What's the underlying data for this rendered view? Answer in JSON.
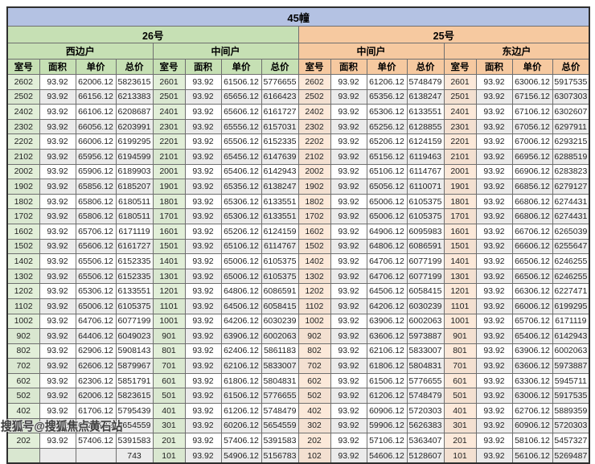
{
  "page": {
    "title": "45幢",
    "watermark": "搜狐号@搜狐焦点黄石站"
  },
  "table": {
    "columns": [
      "室号",
      "面积",
      "单价",
      "总价"
    ],
    "buildings": [
      {
        "label": "26号",
        "theme": "green"
      },
      {
        "label": "25号",
        "theme": "orange"
      }
    ],
    "groups": [
      {
        "building": "26号",
        "unit": "西边户",
        "theme": "green",
        "rows": [
          [
            "2602",
            "93.92",
            "62006.12",
            "5823615"
          ],
          [
            "2502",
            "93.92",
            "66156.12",
            "6213383"
          ],
          [
            "2402",
            "93.92",
            "66106.12",
            "6208687"
          ],
          [
            "2302",
            "93.92",
            "66056.12",
            "6203991"
          ],
          [
            "2202",
            "93.92",
            "66006.12",
            "6199295"
          ],
          [
            "2102",
            "93.92",
            "65956.12",
            "6194599"
          ],
          [
            "2002",
            "93.92",
            "65906.12",
            "6189903"
          ],
          [
            "1902",
            "93.92",
            "65856.12",
            "6185207"
          ],
          [
            "1802",
            "93.92",
            "65806.12",
            "6180511"
          ],
          [
            "1702",
            "93.92",
            "65806.12",
            "6180511"
          ],
          [
            "1602",
            "93.92",
            "65706.12",
            "6171119"
          ],
          [
            "1502",
            "93.92",
            "65606.12",
            "6161727"
          ],
          [
            "1402",
            "93.92",
            "65506.12",
            "6152335"
          ],
          [
            "1302",
            "93.92",
            "65506.12",
            "6152335"
          ],
          [
            "1202",
            "93.92",
            "65306.12",
            "6133551"
          ],
          [
            "1102",
            "93.92",
            "65006.12",
            "6105375"
          ],
          [
            "1002",
            "93.92",
            "64706.12",
            "6077199"
          ],
          [
            "902",
            "93.92",
            "64406.12",
            "6049023"
          ],
          [
            "802",
            "93.92",
            "62906.12",
            "5908143"
          ],
          [
            "702",
            "93.92",
            "62606.12",
            "5879967"
          ],
          [
            "602",
            "93.92",
            "62306.12",
            "5851791"
          ],
          [
            "502",
            "93.92",
            "62006.12",
            "5823615"
          ],
          [
            "402",
            "93.92",
            "61706.12",
            "5795439"
          ],
          [
            "302",
            "93.92",
            "60206.12",
            "5654559"
          ],
          [
            "202",
            "93.92",
            "57406.12",
            "5391583"
          ],
          [
            "",
            "",
            "",
            "743"
          ]
        ]
      },
      {
        "building": "26号",
        "unit": "中间户",
        "theme": "green",
        "rows": [
          [
            "2601",
            "93.92",
            "61506.12",
            "5776655"
          ],
          [
            "2501",
            "93.92",
            "65656.12",
            "6166423"
          ],
          [
            "2401",
            "93.92",
            "65606.12",
            "6161727"
          ],
          [
            "2301",
            "93.92",
            "65556.12",
            "6157031"
          ],
          [
            "2201",
            "93.92",
            "65506.12",
            "6152335"
          ],
          [
            "2101",
            "93.92",
            "65456.12",
            "6147639"
          ],
          [
            "2001",
            "93.92",
            "65406.12",
            "6142943"
          ],
          [
            "1901",
            "93.92",
            "65356.12",
            "6138247"
          ],
          [
            "1801",
            "93.92",
            "65306.12",
            "6133551"
          ],
          [
            "1701",
            "93.92",
            "65306.12",
            "6133551"
          ],
          [
            "1601",
            "93.92",
            "65206.12",
            "6124159"
          ],
          [
            "1501",
            "93.92",
            "65106.12",
            "6114767"
          ],
          [
            "1401",
            "93.92",
            "65006.12",
            "6105375"
          ],
          [
            "1301",
            "93.92",
            "65006.12",
            "6105375"
          ],
          [
            "1201",
            "93.92",
            "64806.12",
            "6086591"
          ],
          [
            "1101",
            "93.92",
            "64506.12",
            "6058415"
          ],
          [
            "1001",
            "93.92",
            "64206.12",
            "6030239"
          ],
          [
            "901",
            "93.92",
            "63906.12",
            "6002063"
          ],
          [
            "801",
            "93.92",
            "62406.12",
            "5861183"
          ],
          [
            "701",
            "93.92",
            "62106.12",
            "5833007"
          ],
          [
            "601",
            "93.92",
            "61806.12",
            "5804831"
          ],
          [
            "501",
            "93.92",
            "61506.12",
            "5776655"
          ],
          [
            "401",
            "93.92",
            "61206.12",
            "5748479"
          ],
          [
            "301",
            "93.92",
            "60206.12",
            "5654559"
          ],
          [
            "201",
            "93.92",
            "57406.12",
            "5391583"
          ],
          [
            "101",
            "93.92",
            "54906.12",
            "5156783"
          ]
        ]
      },
      {
        "building": "25号",
        "unit": "中间户",
        "theme": "orange",
        "rows": [
          [
            "2602",
            "93.92",
            "61206.12",
            "5748479"
          ],
          [
            "2502",
            "93.92",
            "65356.12",
            "6138247"
          ],
          [
            "2402",
            "93.92",
            "65306.12",
            "6133551"
          ],
          [
            "2302",
            "93.92",
            "65256.12",
            "6128855"
          ],
          [
            "2202",
            "93.92",
            "65206.12",
            "6124159"
          ],
          [
            "2102",
            "93.92",
            "65156.12",
            "6119463"
          ],
          [
            "2002",
            "93.92",
            "65106.12",
            "6114767"
          ],
          [
            "1902",
            "93.92",
            "65056.12",
            "6110071"
          ],
          [
            "1802",
            "93.92",
            "65006.12",
            "6105375"
          ],
          [
            "1702",
            "93.92",
            "65006.12",
            "6105375"
          ],
          [
            "1602",
            "93.92",
            "64906.12",
            "6095983"
          ],
          [
            "1502",
            "93.92",
            "64806.12",
            "6086591"
          ],
          [
            "1402",
            "93.92",
            "64706.12",
            "6077199"
          ],
          [
            "1302",
            "93.92",
            "64706.12",
            "6077199"
          ],
          [
            "1202",
            "93.92",
            "64506.12",
            "6058415"
          ],
          [
            "1102",
            "93.92",
            "64206.12",
            "6030239"
          ],
          [
            "1002",
            "93.92",
            "63906.12",
            "6002063"
          ],
          [
            "902",
            "93.92",
            "63606.12",
            "5973887"
          ],
          [
            "802",
            "93.92",
            "62106.12",
            "5833007"
          ],
          [
            "702",
            "93.92",
            "61806.12",
            "5804831"
          ],
          [
            "602",
            "93.92",
            "61506.12",
            "5776655"
          ],
          [
            "502",
            "93.92",
            "61206.12",
            "5748479"
          ],
          [
            "402",
            "93.92",
            "60906.12",
            "5720303"
          ],
          [
            "302",
            "93.92",
            "59906.12",
            "5626383"
          ],
          [
            "202",
            "93.92",
            "57106.12",
            "5363407"
          ],
          [
            "102",
            "93.92",
            "54606.12",
            "5128607"
          ]
        ]
      },
      {
        "building": "25号",
        "unit": "东边户",
        "theme": "orange",
        "rows": [
          [
            "2601",
            "93.92",
            "63006.12",
            "5917535"
          ],
          [
            "2501",
            "93.92",
            "67156.12",
            "6307303"
          ],
          [
            "2401",
            "93.92",
            "67106.12",
            "6302607"
          ],
          [
            "2301",
            "93.92",
            "67056.12",
            "6297911"
          ],
          [
            "2201",
            "93.92",
            "67006.12",
            "6293215"
          ],
          [
            "2101",
            "93.92",
            "66956.12",
            "6288519"
          ],
          [
            "2001",
            "93.92",
            "66906.12",
            "6283823"
          ],
          [
            "1901",
            "93.92",
            "66856.12",
            "6279127"
          ],
          [
            "1801",
            "93.92",
            "66806.12",
            "6274431"
          ],
          [
            "1701",
            "93.92",
            "66806.12",
            "6274431"
          ],
          [
            "1601",
            "93.92",
            "66706.12",
            "6265039"
          ],
          [
            "1501",
            "93.92",
            "66606.12",
            "6255647"
          ],
          [
            "1401",
            "93.92",
            "66506.12",
            "6246255"
          ],
          [
            "1301",
            "93.92",
            "66506.12",
            "6246255"
          ],
          [
            "1201",
            "93.92",
            "66306.12",
            "6227471"
          ],
          [
            "1101",
            "93.92",
            "66006.12",
            "6199295"
          ],
          [
            "1001",
            "93.92",
            "65706.12",
            "6171119"
          ],
          [
            "901",
            "93.92",
            "65406.12",
            "6142943"
          ],
          [
            "801",
            "93.92",
            "63906.12",
            "6002063"
          ],
          [
            "701",
            "93.92",
            "63606.12",
            "5973887"
          ],
          [
            "601",
            "93.92",
            "63306.12",
            "5945711"
          ],
          [
            "501",
            "93.92",
            "63006.12",
            "5917535"
          ],
          [
            "401",
            "93.92",
            "62706.12",
            "5889359"
          ],
          [
            "301",
            "93.92",
            "60906.12",
            "5720303"
          ],
          [
            "201",
            "93.92",
            "58106.12",
            "5457327"
          ],
          [
            "101",
            "93.92",
            "56106.12",
            "5269487"
          ]
        ]
      }
    ]
  },
  "colors": {
    "title_band": "#b4c2e3",
    "building_26_band": "#c6e0b4",
    "building_25_band": "#f6c9a0",
    "room_cell_green": "#e2efd9",
    "room_cell_orange": "#fce9da",
    "alt_row": "#ebebeb",
    "border": "#6f6f6f"
  }
}
